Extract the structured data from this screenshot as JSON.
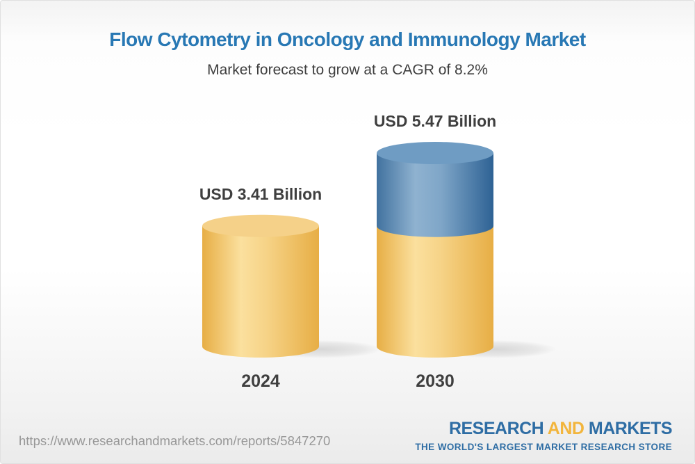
{
  "header": {
    "title": "Flow Cytometry in Oncology and Immunology Market",
    "subtitle": "Market forecast to grow at a CAGR of 8.2%"
  },
  "chart_data": {
    "type": "bar",
    "variant": "3d-cylinder",
    "unit": "USD Billion",
    "cagr": "8.2%",
    "categories": [
      "2024",
      "2030"
    ],
    "values": [
      3.41,
      5.47
    ],
    "ylim": [
      0,
      5.47
    ],
    "grid": false,
    "legend": false,
    "bars": [
      {
        "category": "2024",
        "value": 3.41,
        "value_label": "USD 3.41 Billion",
        "segments": [
          {
            "value": 3.41,
            "color": "gold"
          }
        ]
      },
      {
        "category": "2030",
        "value": 5.47,
        "value_label": "USD 5.47 Billion",
        "segments": [
          {
            "value": 3.41,
            "color": "gold"
          },
          {
            "value": 2.06,
            "color": "blue"
          }
        ]
      }
    ]
  },
  "colors": {
    "title_blue": "#2878B4",
    "text_dark": "#3F3F3F",
    "gold_edge": "#E7AE45",
    "gold_highlight": "#FBE09E",
    "gold_mid": "#F6D387",
    "gold_top": "#F5D189",
    "blue_edge_left": "#41729F",
    "blue_edge_right": "#2E6294",
    "blue_highlight": "#8FB2D0",
    "blue_mid": "#7FA6C8",
    "blue_top": "#6F9CC3",
    "url_gray": "#979797",
    "logo_blue": "#2E6DA4",
    "logo_gold": "#F2B53C"
  },
  "footer": {
    "url": "https://www.researchandmarkets.com/reports/5847270",
    "logo": {
      "word1": "RESEARCH",
      "word2": "AND",
      "word3": "MARKETS",
      "tagline": "THE WORLD'S LARGEST MARKET RESEARCH STORE"
    }
  }
}
